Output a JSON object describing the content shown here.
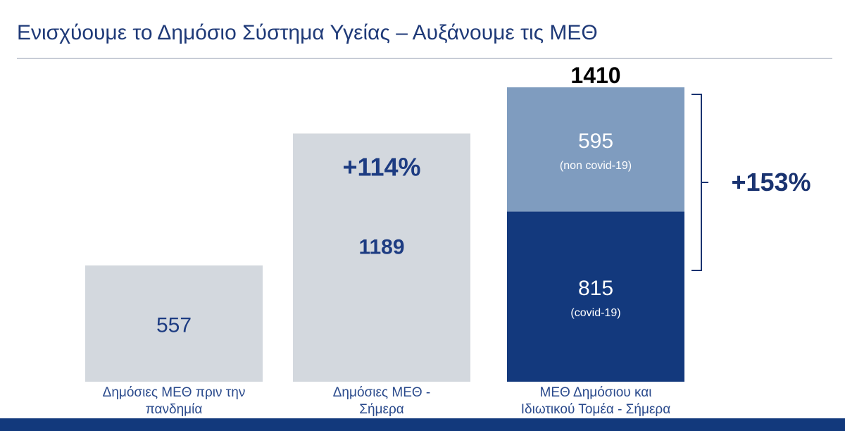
{
  "title": "Ενισχύουμε το Δημόσιο Σύστημα Υγείας – Αυξάνουμε τις ΜΕΘ",
  "colors": {
    "title": "#1f3a78",
    "light_bar": "#d3d8de",
    "light_bar_text": "#1d3c82",
    "stack_top": "#7f9cbf",
    "stack_bottom": "#13397d",
    "stack_text": "#ffffff",
    "category_text": "#2a4a8c",
    "annotation": "#000000",
    "increase_label": "#1a3370",
    "bracket": "#1a3370",
    "footer_bar": "#12397c"
  },
  "chart_data": {
    "type": "bar",
    "title": "Ενισχύουμε το Δημόσιο Σύστημα Υγείας – Αυξάνουμε τις ΜΕΘ",
    "xlabel": "",
    "ylabel": "",
    "ylim": [
      0,
      1410
    ],
    "grid": false,
    "legend": "none",
    "categories": [
      [
        "Δημόσιες ΜΕΘ πριν την",
        "πανδημία"
      ],
      [
        "Δημόσιες ΜΕΘ -",
        "Σήμερα"
      ],
      [
        "ΜΕΘ Δημόσιου και",
        "Ιδιωτικού Τομέα - Σήμερα"
      ]
    ],
    "bars": [
      {
        "value": 557,
        "label": "557"
      },
      {
        "value": 1189,
        "label": "1189",
        "change": "+114%"
      },
      {
        "total": 1410,
        "total_label": "1410",
        "stack": [
          {
            "value": 815,
            "label": "815",
            "sublabel": "(covid-19)"
          },
          {
            "value": 595,
            "label": "595",
            "sublabel": "(non covid-19)"
          }
        ]
      }
    ],
    "annotations": [
      {
        "text": "+153%",
        "target": "stacked-bar"
      }
    ]
  }
}
